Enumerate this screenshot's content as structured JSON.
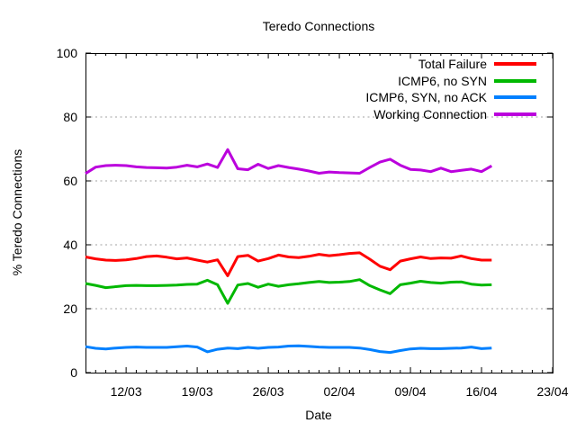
{
  "page": {
    "background": "#ffffff"
  },
  "chart_data": {
    "type": "line",
    "title": "Teredo Connections",
    "xlabel": "Date",
    "ylabel": "% Teredo Connections",
    "ylim": [
      0,
      100
    ],
    "y_ticks": [
      0,
      20,
      40,
      60,
      80,
      100
    ],
    "grid_y": [
      20,
      40,
      60,
      80
    ],
    "grid_on": true,
    "legend_position": "top-right-inside",
    "x_days_total": 46,
    "x_minor_tick_unit_days": 1,
    "x_major_ticks": [
      {
        "day": 4,
        "label": "12/03"
      },
      {
        "day": 11,
        "label": "19/03"
      },
      {
        "day": 18,
        "label": "26/03"
      },
      {
        "day": 25,
        "label": "02/04"
      },
      {
        "day": 32,
        "label": "09/04"
      },
      {
        "day": 39,
        "label": "16/04"
      },
      {
        "day": 46,
        "label": "23/04"
      }
    ],
    "series": [
      {
        "name": "Total Failure",
        "color": "#ff0000",
        "start_day": 0,
        "values": [
          36.2,
          35.6,
          35.2,
          35.1,
          35.3,
          35.7,
          36.3,
          36.5,
          36.1,
          35.6,
          35.9,
          35.2,
          34.6,
          35.3,
          30.3,
          36.3,
          36.7,
          34.9,
          35.7,
          36.8,
          36.2,
          36.0,
          36.4,
          37.0,
          36.6,
          36.9,
          37.3,
          37.5,
          35.5,
          33.3,
          32.2,
          34.9,
          35.6,
          36.2,
          35.7,
          35.9,
          35.8,
          36.5,
          35.7,
          35.2,
          35.2
        ]
      },
      {
        "name": "ICMP6, no SYN",
        "color": "#00b800",
        "start_day": 0,
        "values": [
          27.9,
          27.3,
          26.6,
          26.9,
          27.2,
          27.3,
          27.2,
          27.2,
          27.3,
          27.4,
          27.6,
          27.7,
          28.9,
          27.5,
          21.7,
          27.4,
          27.9,
          26.7,
          27.7,
          27.0,
          27.5,
          27.8,
          28.2,
          28.5,
          28.2,
          28.3,
          28.5,
          29.1,
          27.2,
          25.9,
          24.7,
          27.5,
          28.0,
          28.6,
          28.2,
          28.0,
          28.3,
          28.4,
          27.7,
          27.4,
          27.5
        ]
      },
      {
        "name": "ICMP6, SYN, no ACK",
        "color": "#0080ff",
        "start_day": 0,
        "values": [
          8.1,
          7.6,
          7.4,
          7.7,
          7.9,
          8.0,
          7.9,
          7.9,
          7.9,
          8.1,
          8.3,
          8.0,
          6.5,
          7.3,
          7.7,
          7.5,
          7.9,
          7.6,
          7.9,
          8.0,
          8.3,
          8.4,
          8.2,
          8.0,
          7.9,
          7.9,
          7.9,
          7.7,
          7.2,
          6.6,
          6.3,
          6.9,
          7.4,
          7.6,
          7.5,
          7.5,
          7.6,
          7.7,
          8.0,
          7.5,
          7.7
        ]
      },
      {
        "name": "Working Connection",
        "color": "#bb00dd",
        "start_day": 0,
        "values": [
          62.3,
          64.3,
          64.8,
          64.9,
          64.8,
          64.4,
          64.2,
          64.1,
          64.0,
          64.3,
          64.9,
          64.4,
          65.3,
          64.2,
          69.8,
          63.8,
          63.5,
          65.2,
          63.9,
          64.8,
          64.2,
          63.7,
          63.1,
          62.4,
          62.8,
          62.6,
          62.5,
          62.4,
          64.2,
          65.9,
          66.8,
          64.9,
          63.6,
          63.4,
          62.9,
          64.0,
          62.9,
          63.3,
          63.7,
          62.9,
          64.7
        ]
      }
    ]
  }
}
